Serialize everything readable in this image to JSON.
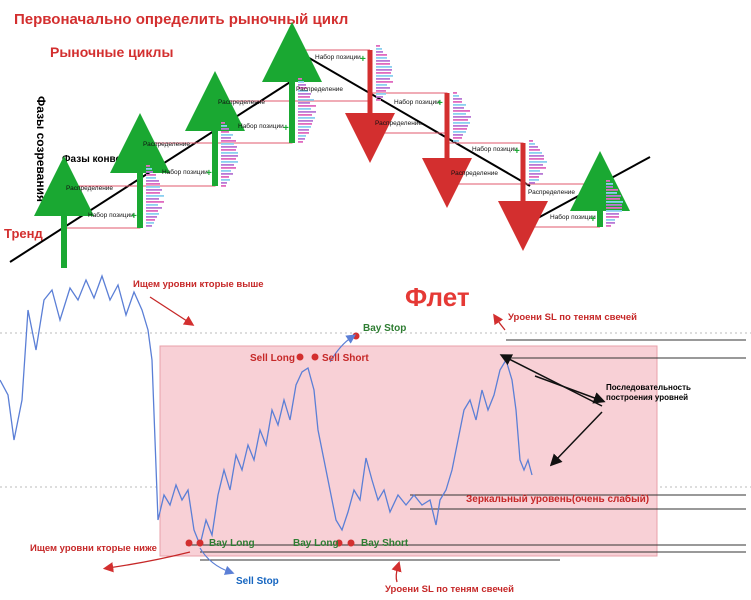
{
  "header": {
    "title": "Первоначально определить рыночный цикл",
    "subtitle": "Рыночные циклы"
  },
  "top_diagram": {
    "vertical_label": "Фазы созревания",
    "conversion_label": "Фазы конвертации",
    "trend_label": "Тренд",
    "phase_distribution": "Распределение",
    "phase_accumulation": "Набор позиции",
    "plus_sign": "+",
    "colors": {
      "up": "#1aa832",
      "down": "#d32f2f",
      "pink_line": "#e05a6e",
      "trend": "#000000"
    }
  },
  "bottom_chart": {
    "flat_title": "Флет",
    "find_levels_above": "Ищем уровни кторые выше",
    "find_levels_below": "Ищем уровни кторые ниже",
    "sl_levels_top": "Уроени SL по теням свечей",
    "sl_levels_bottom": "Уроени SL по теням свечей",
    "sequence_note_line1": "Последовательность",
    "sequence_note_line2": "построения уровней",
    "mirror_level": "Зеркальный уровень(очень слабый)",
    "labels": {
      "bay_stop": "Bay Stop",
      "sell_long": "Sell Long",
      "sell_short": "Sell Short",
      "bay_long_left": "Bay Long",
      "bay_long_mid": "Bay Long",
      "bay_short": "Bay Short",
      "sell_stop": "Sell Stop"
    },
    "colors": {
      "flat_zone": "#f8d0d6",
      "price_line": "#5b7fd6",
      "annotation": "#c62828",
      "green_label": "#2e7d32",
      "blue_label": "#1565c0"
    }
  }
}
